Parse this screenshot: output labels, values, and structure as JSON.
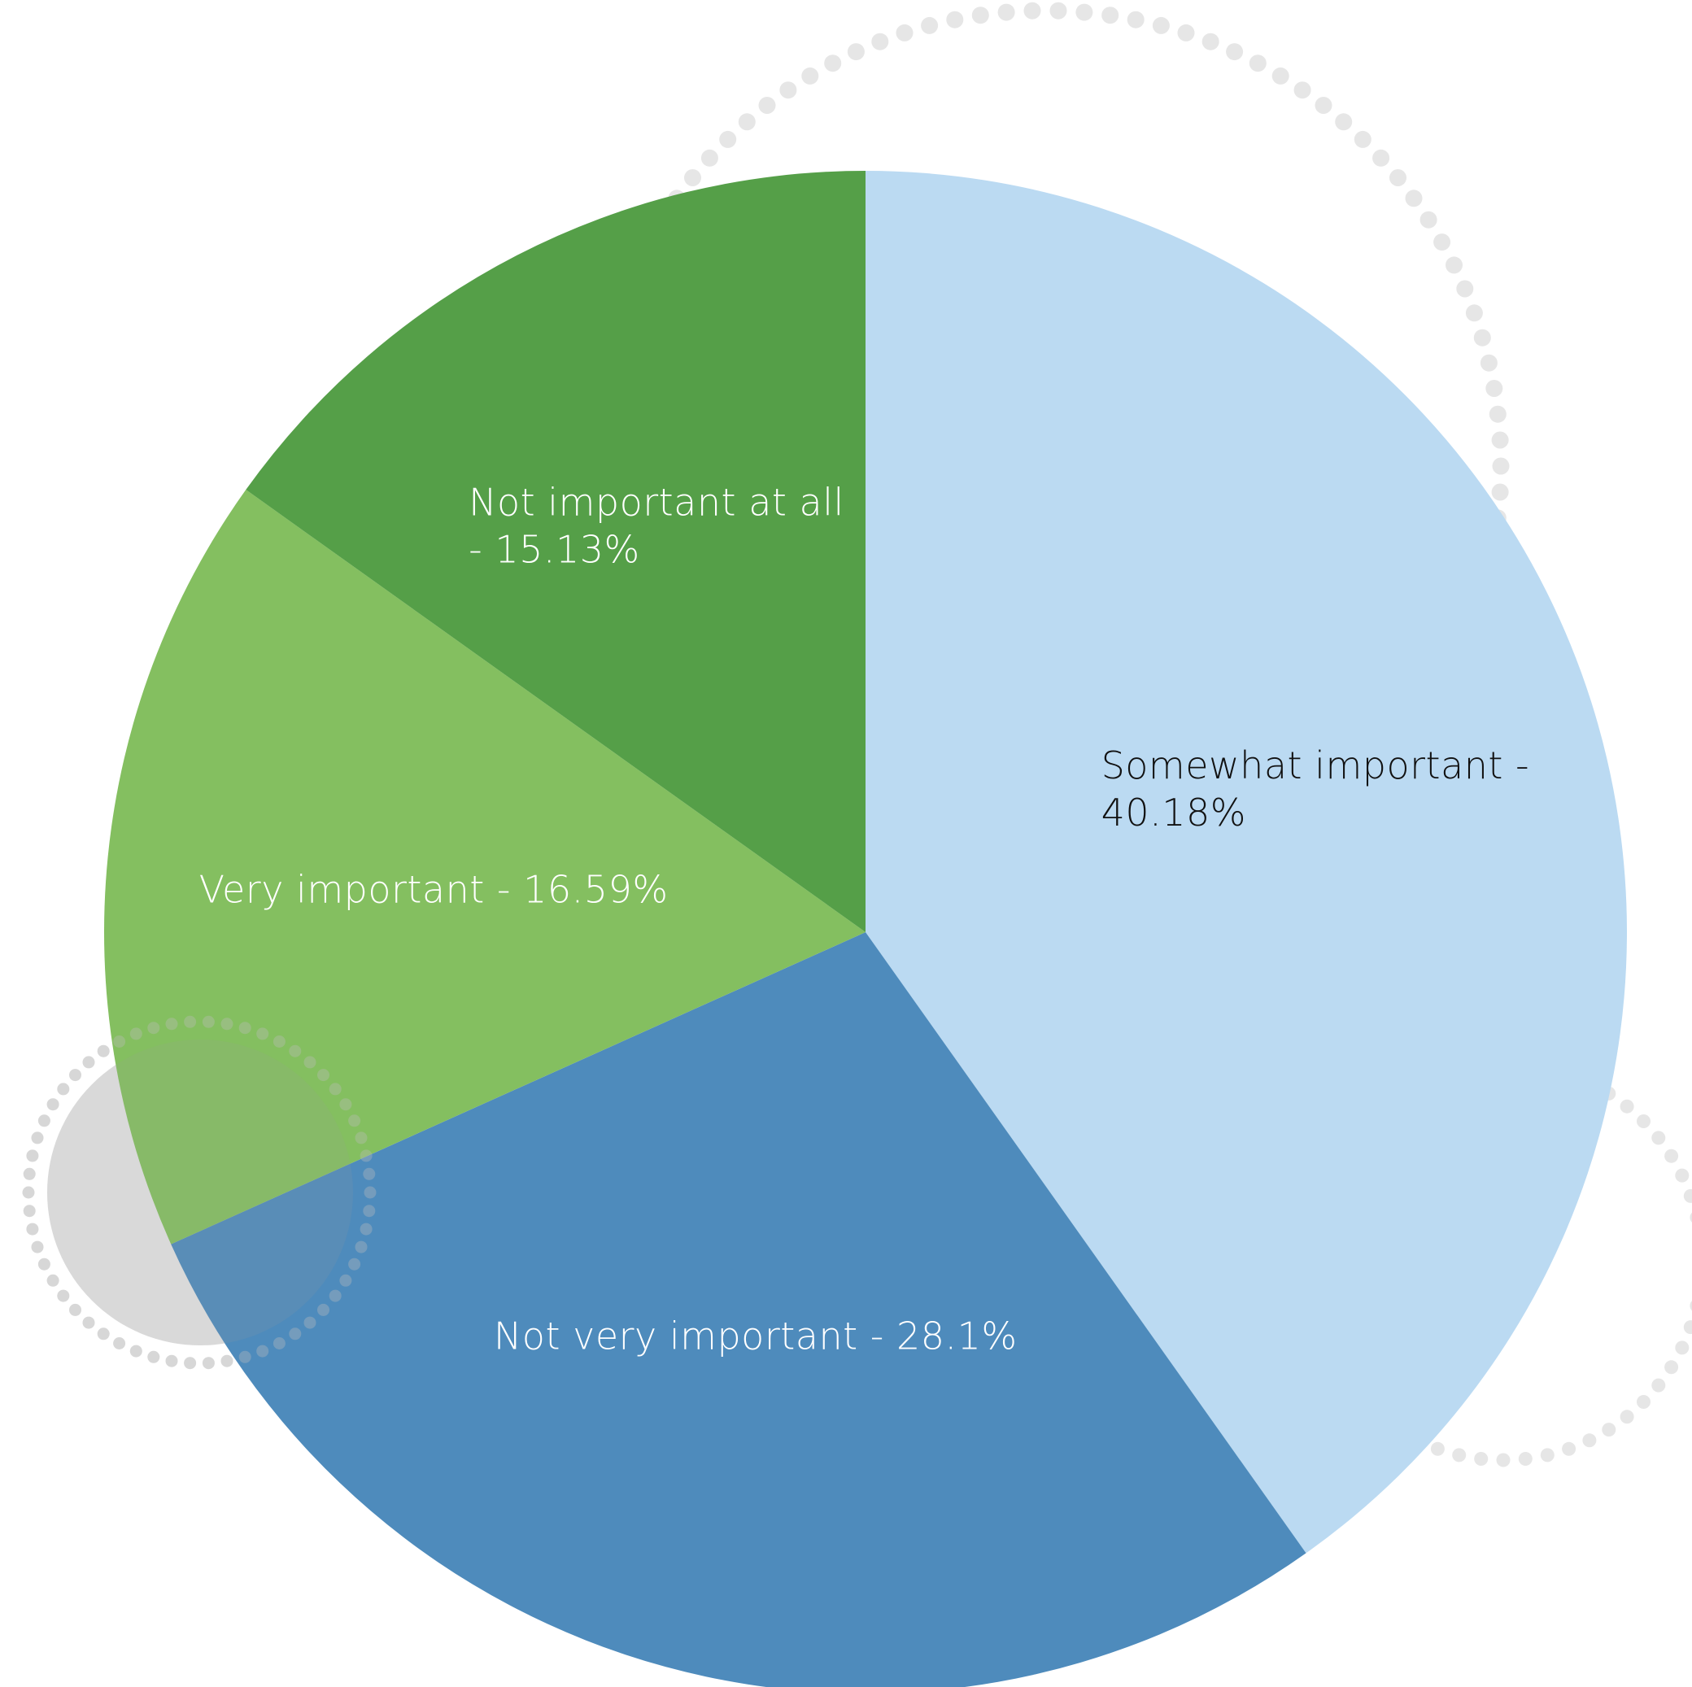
{
  "chart_data": {
    "type": "pie",
    "start_angle_deg": 0,
    "direction": "clockwise",
    "slices": [
      {
        "label": "Somewhat important",
        "value": 40.18,
        "color": "#bbdaf2",
        "label_color": "#111111",
        "lines": [
          "Somewhat important -",
          "40.18%"
        ]
      },
      {
        "label": "Not very important",
        "value": 28.1,
        "color": "#4e8bbc",
        "label_color": "#ffffff",
        "lines": [
          "Not very important - 28.1%"
        ]
      },
      {
        "label": "Very important",
        "value": 16.59,
        "color": "#84bf60",
        "label_color": "#ffffff",
        "lines": [
          "Very important - 16.59%"
        ]
      },
      {
        "label": "Not important at all",
        "value": 15.13,
        "color": "#559f48",
        "label_color": "#ffffff",
        "lines": [
          "Not important at all",
          "- 15.13%"
        ]
      }
    ]
  },
  "decoration": {
    "dot_color": "#e6e6e6",
    "circle_color": "#e3e3e3"
  }
}
